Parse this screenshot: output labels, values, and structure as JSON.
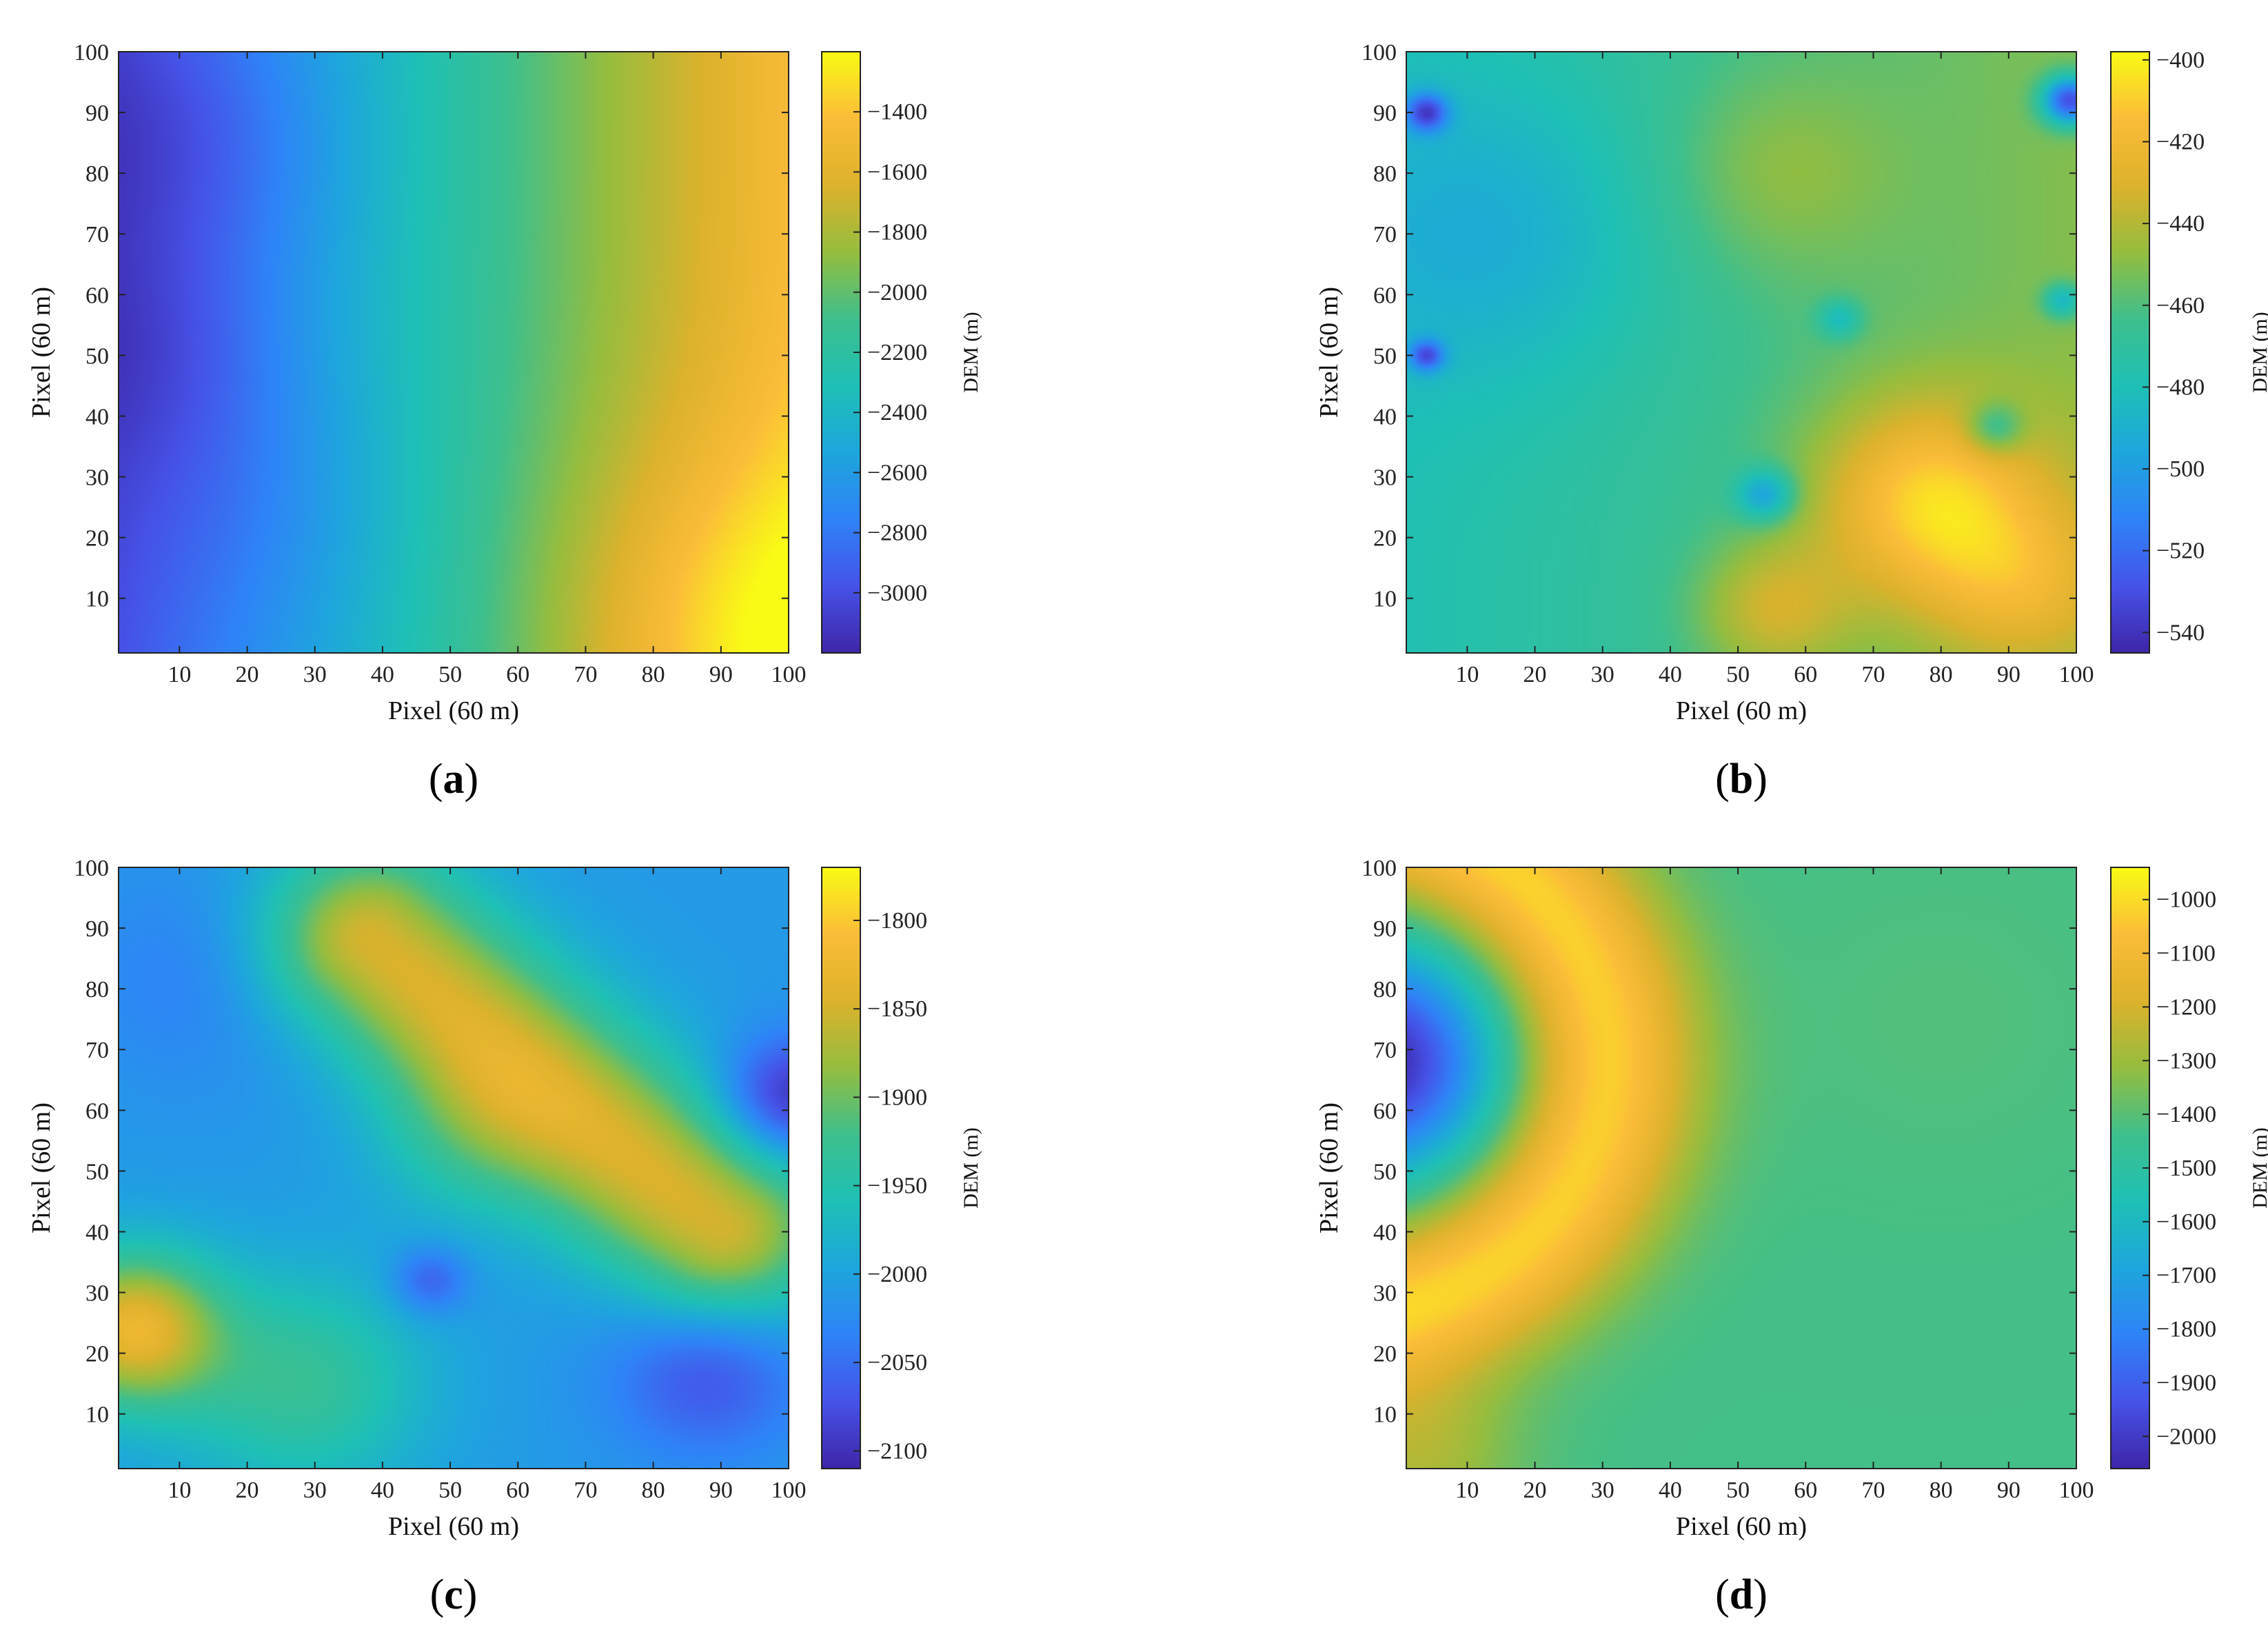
{
  "colormap": [
    "#3e26a8",
    "#4653e8",
    "#2f83f8",
    "#1ea6dd",
    "#1ec0b6",
    "#3ebf8d",
    "#95bd3f",
    "#ddb22c",
    "#fbbc3a",
    "#f9fb15"
  ],
  "chart_data": [
    {
      "type": "heatmap",
      "panel_label": "a",
      "xlabel": "Pixel (60 m)",
      "ylabel": "Pixel (60 m)",
      "colorbar_label": "DEM (m)",
      "xlim": [
        1,
        100
      ],
      "ylim": [
        1,
        100
      ],
      "xticks": [
        10,
        20,
        30,
        40,
        50,
        60,
        70,
        80,
        90,
        100
      ],
      "yticks": [
        10,
        20,
        30,
        40,
        50,
        60,
        70,
        80,
        90,
        100
      ],
      "clim": [
        -3200,
        -1200
      ],
      "cticks": [
        -3000,
        -2800,
        -2600,
        -2400,
        -2200,
        -2000,
        -1800,
        -1600,
        -1400
      ],
      "surface": {
        "base": -3000,
        "terms": [
          {
            "kind": "linear_x",
            "x0": 0,
            "x1": 100,
            "amp": 1550
          },
          {
            "kind": "gauss",
            "x": 95,
            "y": 3,
            "s": 22,
            "amp": 350
          },
          {
            "kind": "gauss",
            "x": 12,
            "y": 85,
            "s": 16,
            "amp": -180
          },
          {
            "kind": "gauss",
            "x": 8,
            "y": 50,
            "s": 14,
            "amp": -150
          },
          {
            "kind": "gauss",
            "x": 22,
            "y": 25,
            "s": 15,
            "amp": -90
          }
        ]
      }
    },
    {
      "type": "heatmap",
      "panel_label": "b",
      "xlabel": "Pixel (60 m)",
      "ylabel": "Pixel (60 m)",
      "colorbar_label": "DEM (m)",
      "xlim": [
        1,
        100
      ],
      "ylim": [
        1,
        100
      ],
      "xticks": [
        10,
        20,
        30,
        40,
        50,
        60,
        70,
        80,
        90,
        100
      ],
      "yticks": [
        10,
        20,
        30,
        40,
        50,
        60,
        70,
        80,
        90,
        100
      ],
      "clim": [
        -545,
        -398
      ],
      "cticks": [
        -540,
        -520,
        -500,
        -480,
        -460,
        -440,
        -420,
        -400
      ],
      "surface": {
        "base": -478,
        "terms": [
          {
            "kind": "linear_x",
            "x0": 0,
            "x1": 100,
            "amp": 28
          },
          {
            "kind": "gauss",
            "x": 78,
            "y": 26,
            "s": 12,
            "amp": 48
          },
          {
            "kind": "gauss",
            "x": 55,
            "y": 8,
            "s": 8,
            "amp": 28
          },
          {
            "kind": "gauss",
            "x": 92,
            "y": 12,
            "s": 10,
            "amp": 25
          },
          {
            "kind": "gauss",
            "x": 55,
            "y": 80,
            "s": 12,
            "amp": 15
          },
          {
            "kind": "gauss",
            "x": 15,
            "y": 70,
            "s": 18,
            "amp": -18
          },
          {
            "kind": "gauss",
            "x": 4,
            "y": 90,
            "s": 2.2,
            "amp": -55
          },
          {
            "kind": "gauss",
            "x": 4,
            "y": 50,
            "s": 1.8,
            "amp": -50
          },
          {
            "kind": "gauss",
            "x": 99,
            "y": 92,
            "s": 2.8,
            "amp": -80
          },
          {
            "kind": "gauss",
            "x": 54,
            "y": 27,
            "s": 3,
            "amp": -40
          },
          {
            "kind": "gauss",
            "x": 88,
            "y": 38,
            "s": 3,
            "amp": -30
          },
          {
            "kind": "gauss",
            "x": 98,
            "y": 59,
            "s": 2,
            "amp": -35
          },
          {
            "kind": "gauss",
            "x": 65,
            "y": 56,
            "s": 2.2,
            "amp": -25
          }
        ]
      }
    },
    {
      "type": "heatmap",
      "panel_label": "c",
      "xlabel": "Pixel (60 m)",
      "ylabel": "Pixel (60 m)",
      "colorbar_label": "DEM (m)",
      "xlim": [
        1,
        100
      ],
      "ylim": [
        1,
        100
      ],
      "xticks": [
        10,
        20,
        30,
        40,
        50,
        60,
        70,
        80,
        90,
        100
      ],
      "yticks": [
        10,
        20,
        30,
        40,
        50,
        60,
        70,
        80,
        90,
        100
      ],
      "clim": [
        -2110,
        -1770
      ],
      "cticks": [
        -2100,
        -2050,
        -2000,
        -1950,
        -1900,
        -1850,
        -1800
      ],
      "surface": {
        "base": -2010,
        "terms": [
          {
            "kind": "ridge",
            "x0": 38,
            "y0": 88,
            "x1": 90,
            "y1": 40,
            "s": 11,
            "amp": 165
          },
          {
            "kind": "gauss",
            "x": 52,
            "y": 55,
            "s": 10,
            "amp": 45
          },
          {
            "kind": "gauss",
            "x": 3,
            "y": 24,
            "s": 9,
            "amp": 175
          },
          {
            "kind": "gauss",
            "x": 28,
            "y": 15,
            "s": 13,
            "amp": 80
          },
          {
            "kind": "gauss",
            "x": 47,
            "y": 32,
            "s": 4,
            "amp": -60
          },
          {
            "kind": "gauss",
            "x": 100,
            "y": 62,
            "s": 7,
            "amp": -95
          },
          {
            "kind": "gauss",
            "x": 88,
            "y": 18,
            "s": 10,
            "amp": -70
          },
          {
            "kind": "gauss",
            "x": 12,
            "y": 82,
            "s": 13,
            "amp": -25
          }
        ]
      }
    },
    {
      "type": "heatmap",
      "panel_label": "d",
      "xlabel": "Pixel (60 m)",
      "ylabel": "Pixel (60 m)",
      "colorbar_label": "DEM (m)",
      "xlim": [
        1,
        100
      ],
      "ylim": [
        1,
        100
      ],
      "xticks": [
        10,
        20,
        30,
        40,
        50,
        60,
        70,
        80,
        90,
        100
      ],
      "yticks": [
        10,
        20,
        30,
        40,
        50,
        60,
        70,
        80,
        90,
        100
      ],
      "clim": [
        -2060,
        -940
      ],
      "cticks": [
        -2000,
        -1900,
        -1800,
        -1700,
        -1600,
        -1500,
        -1400,
        -1300,
        -1200,
        -1100,
        -1000
      ],
      "surface": {
        "base": -1430,
        "terms": [
          {
            "kind": "ring",
            "x": -12,
            "y": 68,
            "r": 42,
            "s": 10,
            "amp": 420
          },
          {
            "kind": "gauss",
            "x": -4,
            "y": 68,
            "s": 13,
            "amp": -640
          },
          {
            "kind": "gauss",
            "x": 3,
            "y": 3,
            "s": 10,
            "amp": 150
          },
          {
            "kind": "gauss",
            "x": 80,
            "y": 75,
            "s": 20,
            "amp": 20
          }
        ]
      }
    }
  ]
}
